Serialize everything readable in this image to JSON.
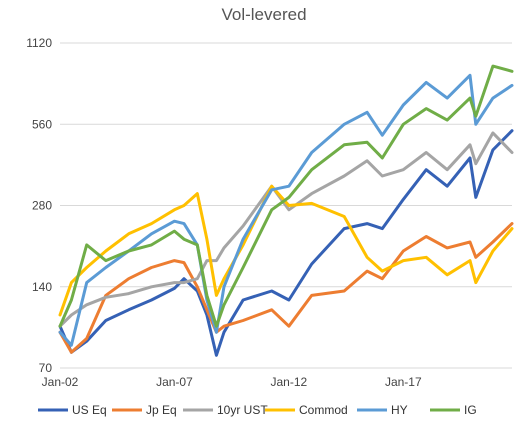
{
  "chart_data": {
    "type": "line",
    "title": "Vol-levered",
    "xlabel": "",
    "ylabel": "",
    "y_scale": "log",
    "ylim": [
      70,
      1120
    ],
    "y_ticks": [
      70,
      140,
      280,
      560,
      1120
    ],
    "x_range": [
      "2002-01",
      "2021-10"
    ],
    "x_ticks": [
      {
        "label": "Jan-02",
        "date": "2002-01"
      },
      {
        "label": "Jan-07",
        "date": "2007-01"
      },
      {
        "label": "Jan-12",
        "date": "2012-01"
      },
      {
        "label": "Jan-17",
        "date": "2017-01"
      }
    ],
    "grid": "horizontal",
    "legend_position": "bottom",
    "x": [
      "2002-01",
      "2002-07",
      "2003-03",
      "2004-01",
      "2005-01",
      "2006-01",
      "2007-01",
      "2007-06",
      "2008-01",
      "2008-06",
      "2008-11",
      "2009-03",
      "2010-01",
      "2011-04",
      "2012-01",
      "2013-01",
      "2014-06",
      "2015-06",
      "2016-02",
      "2017-01",
      "2018-01",
      "2018-12",
      "2019-12",
      "2020-03",
      "2020-12",
      "2021-10"
    ],
    "series": [
      {
        "name": "US Eq",
        "color": "#3561b5",
        "values": [
          100,
          80,
          88,
          105,
          115,
          125,
          138,
          150,
          135,
          110,
          78,
          95,
          125,
          135,
          125,
          170,
          230,
          240,
          230,
          295,
          380,
          330,
          420,
          300,
          450,
          530
        ]
      },
      {
        "name": "Jp Eq",
        "color": "#ed7d31",
        "values": [
          95,
          80,
          90,
          130,
          150,
          165,
          175,
          172,
          140,
          115,
          95,
          100,
          105,
          115,
          100,
          130,
          135,
          160,
          150,
          190,
          215,
          195,
          205,
          180,
          205,
          240
        ]
      },
      {
        "name": "10yr UST",
        "color": "#a5a5a5",
        "values": [
          100,
          110,
          120,
          128,
          132,
          140,
          145,
          145,
          150,
          175,
          175,
          195,
          235,
          330,
          270,
          310,
          360,
          410,
          360,
          380,
          440,
          380,
          470,
          400,
          520,
          440
        ]
      },
      {
        "name": "Commod",
        "color": "#ffc000",
        "values": [
          110,
          145,
          165,
          190,
          220,
          240,
          270,
          280,
          310,
          210,
          130,
          150,
          200,
          330,
          280,
          285,
          255,
          180,
          160,
          175,
          180,
          155,
          175,
          145,
          190,
          230
        ]
      },
      {
        "name": "HY",
        "color": "#5b9bd5",
        "values": [
          95,
          85,
          145,
          165,
          190,
          220,
          245,
          240,
          200,
          125,
          95,
          140,
          210,
          320,
          330,
          440,
          560,
          620,
          510,
          660,
          800,
          700,
          850,
          560,
          700,
          780
        ]
      },
      {
        "name": "IG",
        "color": "#70ad47",
        "values": [
          100,
          125,
          200,
          175,
          190,
          200,
          225,
          210,
          200,
          130,
          100,
          120,
          165,
          270,
          300,
          380,
          470,
          480,
          420,
          560,
          640,
          580,
          700,
          600,
          920,
          880
        ]
      }
    ]
  }
}
